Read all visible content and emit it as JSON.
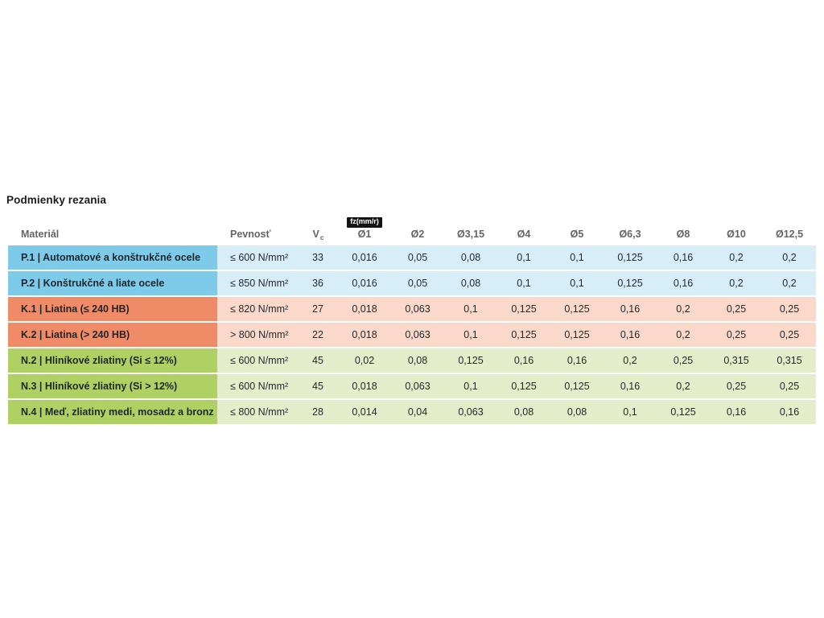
{
  "page": {
    "title": "Podmienky rezania"
  },
  "table": {
    "headers": {
      "material": "Materiál",
      "strength": "Pevnosť",
      "vc_main": "V",
      "vc_sub": "c",
      "feed_unit_badge": "fz(mm/r)"
    },
    "diameter_headers": [
      "Ø1",
      "Ø2",
      "Ø3,15",
      "Ø4",
      "Ø5",
      "Ø6,3",
      "Ø8",
      "Ø10",
      "Ø12,5"
    ],
    "group_colors": {
      "P": {
        "strong": "#7ECBE9",
        "light": "#D7EDF8"
      },
      "K": {
        "strong": "#EF8C67",
        "light": "#FAD9CB"
      },
      "N": {
        "strong": "#AFD164",
        "light": "#E3EDC9"
      }
    },
    "rows": [
      {
        "group": "P",
        "material": "P.1 | Automatové a konštrukčné ocele",
        "strength": "≤ 600 N/mm²",
        "vc": "33",
        "feeds": [
          "0,016",
          "0,05",
          "0,08",
          "0,1",
          "0,1",
          "0,125",
          "0,16",
          "0,2",
          "0,2"
        ]
      },
      {
        "group": "P",
        "material": "P.2 | Konštrukčné a liate ocele",
        "strength": "≤ 850 N/mm²",
        "vc": "36",
        "feeds": [
          "0,016",
          "0,05",
          "0,08",
          "0,1",
          "0,1",
          "0,125",
          "0,16",
          "0,2",
          "0,2"
        ]
      },
      {
        "group": "K",
        "material": "K.1 | Liatina (≤ 240 HB)",
        "strength": "≤ 820 N/mm²",
        "vc": "27",
        "feeds": [
          "0,018",
          "0,063",
          "0,1",
          "0,125",
          "0,125",
          "0,16",
          "0,2",
          "0,25",
          "0,25"
        ]
      },
      {
        "group": "K",
        "material": "K.2 | Liatina (> 240 HB)",
        "strength": "> 800 N/mm²",
        "vc": "22",
        "feeds": [
          "0,018",
          "0,063",
          "0,1",
          "0,125",
          "0,125",
          "0,16",
          "0,2",
          "0,25",
          "0,25"
        ]
      },
      {
        "group": "N",
        "material": "N.2 | Hliníkové zliatiny (Si ≤ 12%)",
        "strength": "≤ 600 N/mm²",
        "vc": "45",
        "feeds": [
          "0,02",
          "0,08",
          "0,125",
          "0,16",
          "0,16",
          "0,2",
          "0,25",
          "0,315",
          "0,315"
        ]
      },
      {
        "group": "N",
        "material": "N.3 | Hliníkové zliatiny (Si > 12%)",
        "strength": "≤ 600 N/mm²",
        "vc": "45",
        "feeds": [
          "0,018",
          "0,063",
          "0,1",
          "0,125",
          "0,125",
          "0,16",
          "0,2",
          "0,25",
          "0,25"
        ]
      },
      {
        "group": "N",
        "material": "N.4 | Meď, zliatiny medi, mosadz a bronz",
        "strength": "≤ 800 N/mm²",
        "vc": "28",
        "feeds": [
          "0,014",
          "0,04",
          "0,063",
          "0,08",
          "0,08",
          "0,1",
          "0,125",
          "0,16",
          "0,16"
        ]
      }
    ]
  }
}
